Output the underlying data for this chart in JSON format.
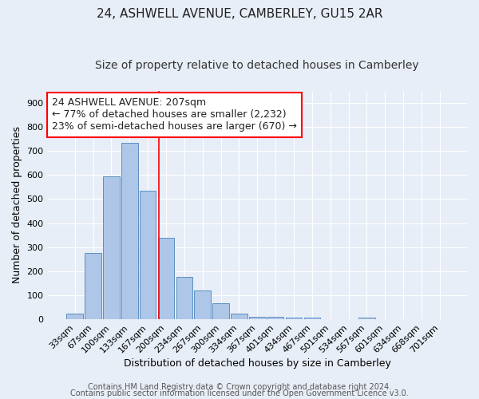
{
  "title": "24, ASHWELL AVENUE, CAMBERLEY, GU15 2AR",
  "subtitle": "Size of property relative to detached houses in Camberley",
  "xlabel": "Distribution of detached houses by size in Camberley",
  "ylabel": "Number of detached properties",
  "bar_labels": [
    "33sqm",
    "67sqm",
    "100sqm",
    "133sqm",
    "167sqm",
    "200sqm",
    "234sqm",
    "267sqm",
    "300sqm",
    "334sqm",
    "367sqm",
    "401sqm",
    "434sqm",
    "467sqm",
    "501sqm",
    "534sqm",
    "567sqm",
    "601sqm",
    "634sqm",
    "668sqm",
    "701sqm"
  ],
  "bar_values": [
    25,
    275,
    595,
    735,
    535,
    340,
    178,
    120,
    68,
    25,
    12,
    12,
    8,
    8,
    0,
    0,
    8,
    0,
    0,
    0,
    0
  ],
  "bar_color": "#aec6e8",
  "bar_edge_color": "#5a8fc2",
  "background_color": "#e8eef7",
  "annotation_line1": "24 ASHWELL AVENUE: 207sqm",
  "annotation_line2": "← 77% of detached houses are smaller (2,232)",
  "annotation_line3": "23% of semi-detached houses are larger (670) →",
  "red_line_x": 4.62,
  "ylim": [
    0,
    950
  ],
  "yticks": [
    0,
    100,
    200,
    300,
    400,
    500,
    600,
    700,
    800,
    900
  ],
  "footer_line1": "Contains HM Land Registry data © Crown copyright and database right 2024.",
  "footer_line2": "Contains public sector information licensed under the Open Government Licence v3.0.",
  "title_fontsize": 11,
  "subtitle_fontsize": 10,
  "xlabel_fontsize": 9,
  "ylabel_fontsize": 9,
  "tick_fontsize": 8,
  "annotation_fontsize": 9,
  "footer_fontsize": 7
}
